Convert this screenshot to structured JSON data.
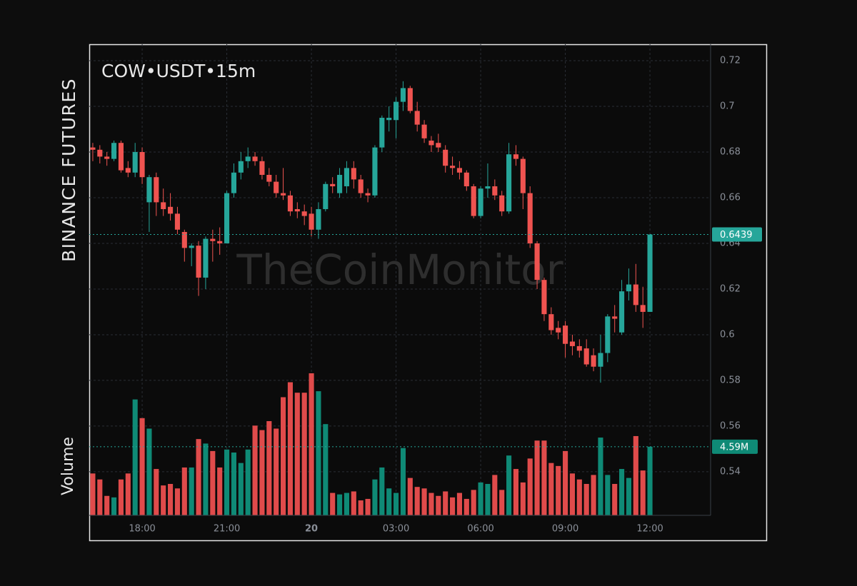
{
  "chart_data": {
    "type": "candlestick",
    "title": "COW•USDT•15m",
    "exchange": "BINANCE FUTURES",
    "watermark": "TheCoinMonitor",
    "volume_label": "Volume",
    "up_color": "#26a69a",
    "down_color": "#ef5350",
    "volume_up_color": "#0f8a76",
    "volume_down_color": "#e04b4b",
    "grid": true,
    "xlim": [
      -0.5,
      87.6
    ],
    "xticks": [
      {
        "value": 7,
        "label": "18:00"
      },
      {
        "value": 19,
        "label": "21:00"
      },
      {
        "value": 31,
        "label": "20"
      },
      {
        "value": 43,
        "label": "03:00"
      },
      {
        "value": 55,
        "label": "06:00"
      },
      {
        "value": 67,
        "label": "09:00"
      },
      {
        "value": 79,
        "label": "12:00"
      }
    ],
    "ylim": [
      0.5209,
      0.7272
    ],
    "yticks": [
      0.54,
      0.56,
      0.58,
      0.6,
      0.62,
      0.64,
      0.66,
      0.68,
      0.7,
      0.72
    ],
    "volume_lim": [
      0,
      10.5
    ],
    "last_price": 0.6439,
    "last_volume": 4.59,
    "value_labels": {
      "last_volume": "4.59M"
    },
    "open": [
      0.682,
      0.681,
      0.678,
      0.677,
      0.684,
      0.673,
      0.671,
      0.68,
      0.658,
      0.669,
      0.658,
      0.656,
      0.653,
      0.645,
      0.638,
      0.639,
      0.625,
      0.642,
      0.641,
      0.64,
      0.662,
      0.671,
      0.676,
      0.678,
      0.676,
      0.67,
      0.667,
      0.662,
      0.661,
      0.655,
      0.654,
      0.653,
      0.646,
      0.655,
      0.666,
      0.662,
      0.665,
      0.673,
      0.668,
      0.662,
      0.661,
      0.682,
      0.694,
      0.694,
      0.702,
      0.708,
      0.698,
      0.692,
      0.685,
      0.684,
      0.681,
      0.674,
      0.673,
      0.671,
      0.665,
      0.652,
      0.664,
      0.665,
      0.661,
      0.654,
      0.679,
      0.677,
      0.662,
      0.64,
      0.624,
      0.609,
      0.603,
      0.604,
      0.597,
      0.595,
      0.594,
      0.591,
      0.586,
      0.592,
      0.608,
      0.601,
      0.619,
      0.622,
      0.613,
      0.61
    ],
    "high": [
      0.684,
      0.683,
      0.68,
      0.685,
      0.685,
      0.676,
      0.684,
      0.682,
      0.67,
      0.671,
      0.664,
      0.662,
      0.656,
      0.646,
      0.64,
      0.641,
      0.643,
      0.646,
      0.647,
      0.663,
      0.675,
      0.68,
      0.682,
      0.68,
      0.678,
      0.673,
      0.67,
      0.673,
      0.663,
      0.658,
      0.657,
      0.656,
      0.658,
      0.667,
      0.669,
      0.673,
      0.676,
      0.676,
      0.67,
      0.664,
      0.683,
      0.696,
      0.7,
      0.704,
      0.711,
      0.709,
      0.702,
      0.694,
      0.687,
      0.688,
      0.683,
      0.678,
      0.676,
      0.672,
      0.666,
      0.665,
      0.675,
      0.668,
      0.663,
      0.684,
      0.683,
      0.678,
      0.665,
      0.641,
      0.625,
      0.612,
      0.606,
      0.606,
      0.6,
      0.598,
      0.598,
      0.594,
      0.6,
      0.609,
      0.613,
      0.624,
      0.629,
      0.631,
      0.621,
      0.6439
    ],
    "low": [
      0.676,
      0.675,
      0.674,
      0.676,
      0.671,
      0.669,
      0.669,
      0.666,
      0.645,
      0.652,
      0.652,
      0.65,
      0.644,
      0.632,
      0.63,
      0.617,
      0.62,
      0.632,
      0.635,
      0.64,
      0.66,
      0.668,
      0.673,
      0.674,
      0.668,
      0.665,
      0.66,
      0.659,
      0.652,
      0.651,
      0.648,
      0.643,
      0.642,
      0.654,
      0.662,
      0.66,
      0.662,
      0.664,
      0.66,
      0.658,
      0.66,
      0.68,
      0.689,
      0.686,
      0.698,
      0.697,
      0.689,
      0.684,
      0.68,
      0.68,
      0.671,
      0.67,
      0.668,
      0.663,
      0.651,
      0.651,
      0.66,
      0.659,
      0.652,
      0.653,
      0.674,
      0.655,
      0.638,
      0.62,
      0.606,
      0.6,
      0.598,
      0.59,
      0.591,
      0.59,
      0.586,
      0.584,
      0.579,
      0.588,
      0.601,
      0.6,
      0.615,
      0.61,
      0.603,
      0.61
    ],
    "close": [
      0.681,
      0.678,
      0.677,
      0.684,
      0.672,
      0.671,
      0.68,
      0.669,
      0.669,
      0.658,
      0.655,
      0.653,
      0.646,
      0.638,
      0.639,
      0.625,
      0.642,
      0.641,
      0.64,
      0.662,
      0.671,
      0.676,
      0.678,
      0.676,
      0.67,
      0.667,
      0.662,
      0.661,
      0.654,
      0.654,
      0.652,
      0.646,
      0.655,
      0.666,
      0.665,
      0.67,
      0.673,
      0.668,
      0.662,
      0.661,
      0.682,
      0.695,
      0.695,
      0.702,
      0.708,
      0.698,
      0.692,
      0.686,
      0.683,
      0.682,
      0.674,
      0.673,
      0.671,
      0.665,
      0.652,
      0.664,
      0.665,
      0.661,
      0.654,
      0.679,
      0.677,
      0.662,
      0.64,
      0.624,
      0.609,
      0.602,
      0.601,
      0.596,
      0.595,
      0.593,
      0.587,
      0.586,
      0.592,
      0.608,
      0.607,
      0.619,
      0.622,
      0.613,
      0.61,
      0.6439
    ],
    "volume": [
      2.8,
      2.4,
      1.3,
      1.2,
      2.4,
      2.8,
      7.75,
      6.5,
      5.8,
      3.1,
      2.0,
      2.1,
      1.8,
      3.2,
      3.2,
      5.1,
      4.8,
      4.3,
      3.2,
      4.4,
      4.2,
      3.5,
      4.4,
      6.0,
      5.7,
      6.3,
      5.8,
      7.9,
      8.9,
      8.2,
      8.2,
      9.5,
      8.3,
      6.1,
      1.5,
      1.4,
      1.5,
      1.6,
      1.0,
      1.1,
      2.4,
      3.2,
      1.8,
      1.5,
      4.5,
      2.5,
      1.9,
      1.8,
      1.5,
      1.3,
      1.6,
      1.2,
      1.5,
      1.1,
      1.7,
      2.2,
      2.1,
      2.7,
      1.7,
      4.0,
      3.1,
      2.2,
      3.8,
      5.0,
      5.0,
      3.5,
      3.3,
      4.3,
      2.8,
      2.4,
      2.1,
      2.7,
      5.2,
      2.7,
      2.1,
      3.1,
      2.5,
      5.3,
      3.0,
      4.59
    ]
  }
}
